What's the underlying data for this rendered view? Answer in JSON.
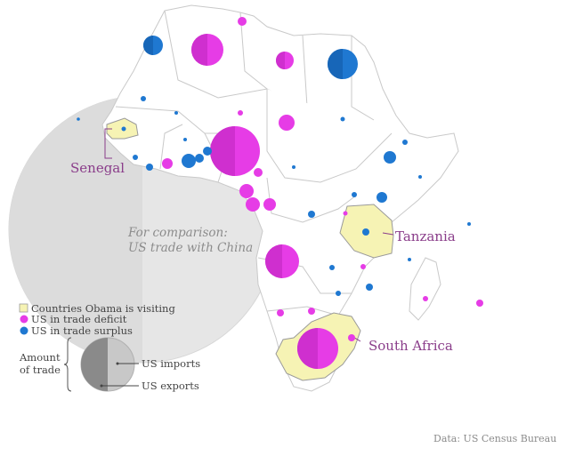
{
  "map": {
    "comparison": {
      "line1": "For comparison:",
      "line2": "US trade with China"
    },
    "countries_visiting": [
      {
        "key": "senegal",
        "label": "Senegal"
      },
      {
        "key": "tanzania",
        "label": "Tanzania"
      },
      {
        "key": "south_africa",
        "label": "South Africa"
      }
    ],
    "legend": {
      "visiting": "Countries Obama is visiting",
      "deficit": "US in trade deficit",
      "surplus": "US in trade surplus",
      "amount_line1": "Amount",
      "amount_line2": "of trade",
      "imports": "US imports",
      "exports": "US exports"
    },
    "source": "Data: US Census Bureau",
    "colors": {
      "deficit": "#e63ce6",
      "surplus": "#1f78d1",
      "visiting_fill": "#f6f3b4",
      "china_fill": "#e6e6e6",
      "label": "#8a3d8a"
    }
  }
}
